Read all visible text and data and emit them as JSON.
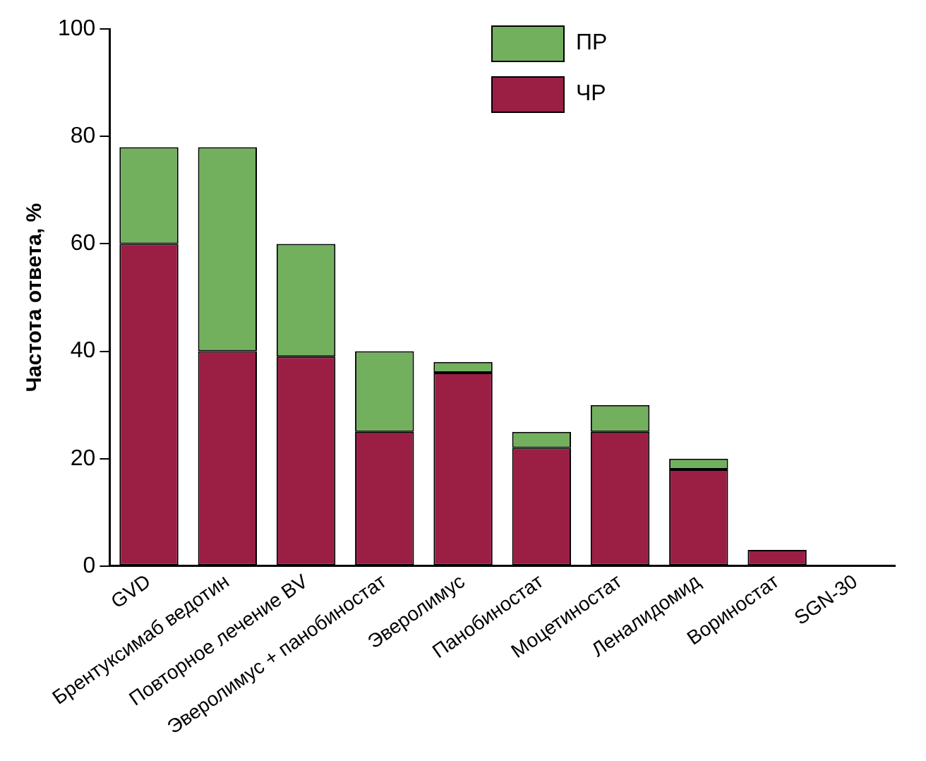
{
  "chart_data": {
    "type": "bar",
    "stacked": true,
    "ylabel": "Частота ответа, %",
    "categories": [
      "GVD",
      "Брентуксимаб ведотин",
      "Повторное лечение BV",
      "Эверолимус + панобиностат",
      "Эверолимус",
      "Панобиностат",
      "Моцетиностат",
      "Леналидомид",
      "Вориностат",
      "SGN-30"
    ],
    "series": [
      {
        "name": "ЧР",
        "color": "#9b1f45",
        "values": [
          60,
          40,
          39,
          25,
          36,
          22,
          25,
          18,
          3,
          0
        ]
      },
      {
        "name": "ПР",
        "color": "#72b05e",
        "values": [
          18,
          38,
          21,
          15,
          2,
          3,
          5,
          2,
          0,
          0
        ]
      }
    ],
    "ylim": [
      0,
      100
    ],
    "yticks": [
      0,
      20,
      40,
      60,
      80,
      100
    ],
    "grid": false,
    "legend": "top"
  }
}
